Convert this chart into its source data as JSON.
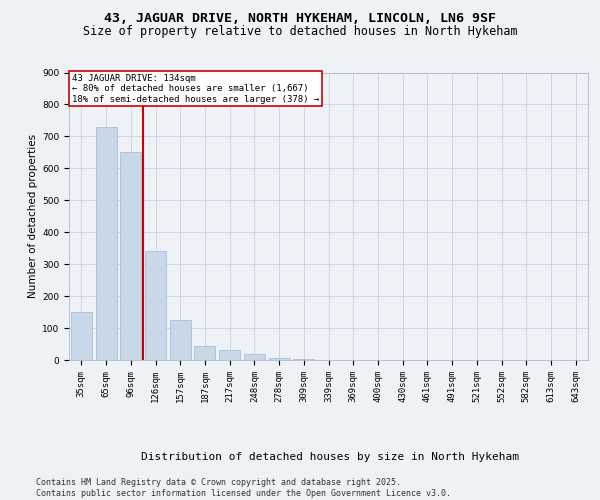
{
  "title1": "43, JAGUAR DRIVE, NORTH HYKEHAM, LINCOLN, LN6 9SF",
  "title2": "Size of property relative to detached houses in North Hykeham",
  "xlabel": "Distribution of detached houses by size in North Hykeham",
  "ylabel": "Number of detached properties",
  "categories": [
    "35sqm",
    "65sqm",
    "96sqm",
    "126sqm",
    "157sqm",
    "187sqm",
    "217sqm",
    "248sqm",
    "278sqm",
    "309sqm",
    "339sqm",
    "369sqm",
    "400sqm",
    "430sqm",
    "461sqm",
    "491sqm",
    "521sqm",
    "552sqm",
    "582sqm",
    "613sqm",
    "643sqm"
  ],
  "values": [
    150,
    730,
    650,
    340,
    125,
    45,
    30,
    20,
    5,
    2,
    0,
    0,
    0,
    0,
    0,
    0,
    0,
    0,
    0,
    0,
    0
  ],
  "bar_color": "#c8d8e8",
  "bar_edge_color": "#a0b8d0",
  "vline_x": 3,
  "vline_color": "#cc0000",
  "annotation_text": "43 JAGUAR DRIVE: 134sqm\n← 80% of detached houses are smaller (1,667)\n18% of semi-detached houses are larger (378) →",
  "annotation_box_color": "#ffffff",
  "annotation_box_edge": "#cc0000",
  "ylim": [
    0,
    900
  ],
  "yticks": [
    0,
    100,
    200,
    300,
    400,
    500,
    600,
    700,
    800,
    900
  ],
  "bg_color": "#eef2f7",
  "plot_bg_color": "#eef2f7",
  "footer": "Contains HM Land Registry data © Crown copyright and database right 2025.\nContains public sector information licensed under the Open Government Licence v3.0.",
  "title1_fontsize": 9.5,
  "title2_fontsize": 8.5,
  "xlabel_fontsize": 8,
  "ylabel_fontsize": 7.5,
  "tick_fontsize": 6.5,
  "footer_fontsize": 6.0,
  "ann_fontsize": 6.5
}
